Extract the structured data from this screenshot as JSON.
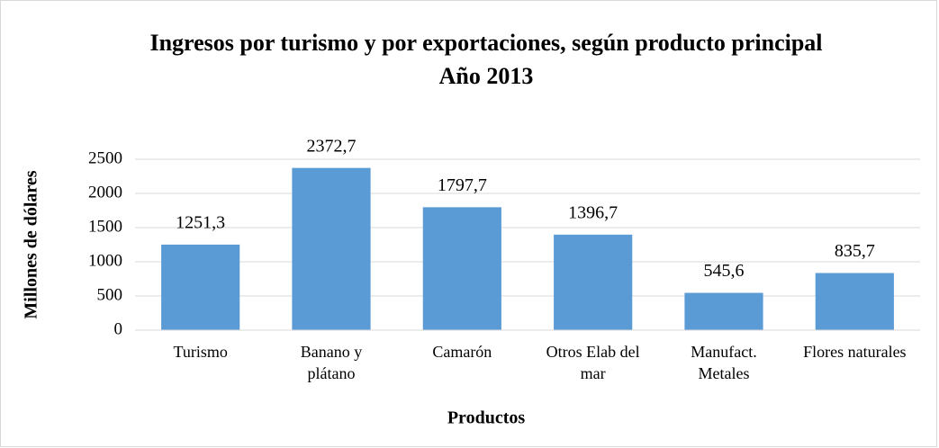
{
  "chart_data": {
    "type": "bar",
    "title": "Ingresos por turismo y por exportaciones, según producto principal",
    "subtitle": "Año 2013",
    "x_label": "Productos",
    "y_label": "Millones de dólares",
    "categories": [
      "Turismo",
      "Banano y plátano",
      "Camarón",
      "Otros Elab del mar",
      "Manufact. Metales",
      "Flores naturales"
    ],
    "values": [
      1251.3,
      2372.7,
      1797.7,
      1396.7,
      545.6,
      835.7
    ],
    "value_labels": [
      "1251,3",
      "2372,7",
      "1797,7",
      "1396,7",
      "545,6",
      "835,7"
    ],
    "color": "#5b9bd5",
    "ylim": [
      0,
      2500
    ],
    "yticks": [
      0,
      500,
      1000,
      1500,
      2000,
      2500
    ],
    "grid": true
  }
}
